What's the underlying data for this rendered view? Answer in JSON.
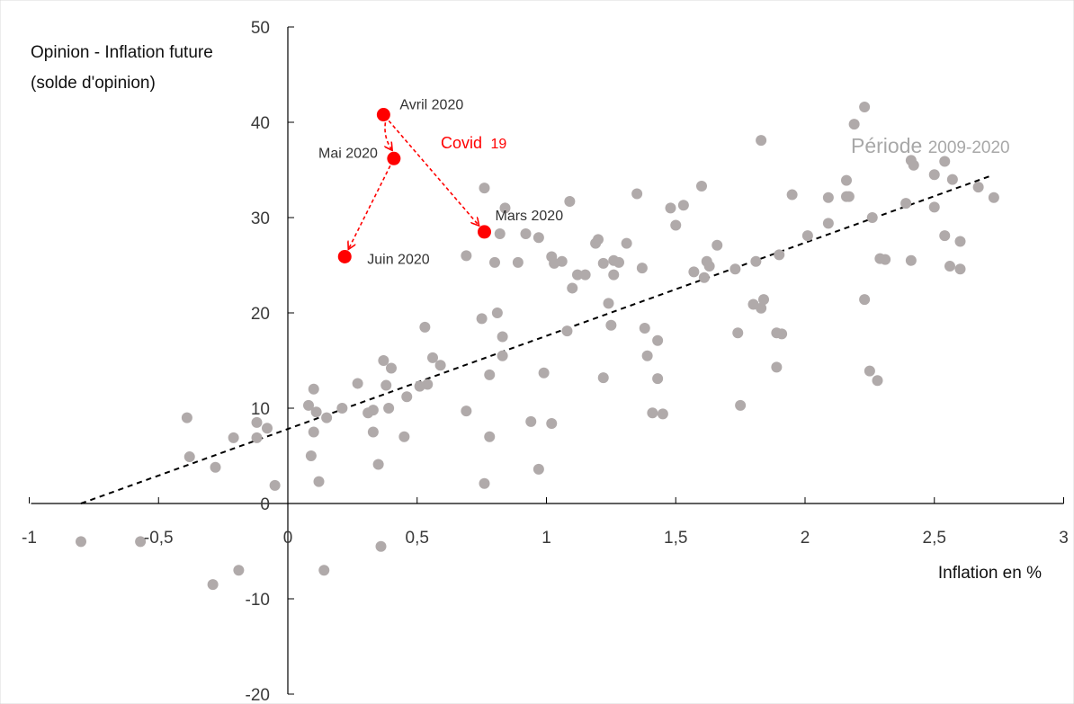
{
  "chart_data": {
    "type": "scatter",
    "title": "",
    "xlabel": "Inflation en %",
    "ylabel_lines": [
      "Opinion - Inflation future",
      "(solde d'opinion)"
    ],
    "xlim": [
      -1,
      3
    ],
    "ylim": [
      -20,
      50
    ],
    "x_ticks": [
      -1,
      -0.5,
      0,
      0.5,
      1,
      1.5,
      2,
      2.5,
      3
    ],
    "x_tick_labels": [
      "-1",
      "-0,5",
      "0",
      "0,5",
      "1",
      "1,5",
      "2",
      "2,5",
      "3"
    ],
    "y_ticks": [
      -20,
      -10,
      0,
      10,
      20,
      30,
      40,
      50
    ],
    "y_tick_labels": [
      "-20",
      "-10",
      "0",
      "10",
      "20",
      "30",
      "40",
      "50"
    ],
    "grid": false,
    "colors": {
      "history": "#b0aaaa",
      "covid": "#ff0000",
      "trend": "#000000"
    },
    "series": [
      {
        "role": "history",
        "points": [
          [
            -0.8,
            -4
          ],
          [
            -0.57,
            -4
          ],
          [
            -0.39,
            9
          ],
          [
            -0.38,
            4.9
          ],
          [
            -0.28,
            3.8
          ],
          [
            -0.29,
            -8.5
          ],
          [
            -0.21,
            6.9
          ],
          [
            -0.19,
            -7
          ],
          [
            -0.12,
            8.5
          ],
          [
            -0.12,
            6.9
          ],
          [
            -0.08,
            7.9
          ],
          [
            -0.05,
            1.9
          ],
          [
            0.08,
            10.3
          ],
          [
            0.09,
            5
          ],
          [
            0.1,
            7.5
          ],
          [
            0.1,
            12
          ],
          [
            0.11,
            9.6
          ],
          [
            0.12,
            2.3
          ],
          [
            0.14,
            -7
          ],
          [
            0.15,
            9
          ],
          [
            0.21,
            10
          ],
          [
            0.27,
            12.6
          ],
          [
            0.31,
            9.5
          ],
          [
            0.33,
            9.8
          ],
          [
            0.33,
            7.5
          ],
          [
            0.35,
            4.1
          ],
          [
            0.36,
            -4.5
          ],
          [
            0.37,
            15
          ],
          [
            0.38,
            12.4
          ],
          [
            0.39,
            10
          ],
          [
            0.4,
            14.2
          ],
          [
            0.45,
            7
          ],
          [
            0.46,
            11.2
          ],
          [
            0.51,
            12.3
          ],
          [
            0.53,
            18.5
          ],
          [
            0.54,
            12.5
          ],
          [
            0.56,
            15.3
          ],
          [
            0.59,
            14.5
          ],
          [
            0.69,
            26
          ],
          [
            0.69,
            9.7
          ],
          [
            0.75,
            19.4
          ],
          [
            0.76,
            33.1
          ],
          [
            0.76,
            2.1
          ],
          [
            0.78,
            7
          ],
          [
            0.78,
            13.5
          ],
          [
            0.8,
            25.3
          ],
          [
            0.81,
            20
          ],
          [
            0.82,
            28.3
          ],
          [
            0.83,
            17.5
          ],
          [
            0.83,
            15.5
          ],
          [
            0.84,
            31
          ],
          [
            0.89,
            25.3
          ],
          [
            0.92,
            28.3
          ],
          [
            0.94,
            8.6
          ],
          [
            0.97,
            3.6
          ],
          [
            0.97,
            27.9
          ],
          [
            0.99,
            13.7
          ],
          [
            1.02,
            8.4
          ],
          [
            1.02,
            25.9
          ],
          [
            1.03,
            25.2
          ],
          [
            1.06,
            25.4
          ],
          [
            1.08,
            18.1
          ],
          [
            1.09,
            31.7
          ],
          [
            1.1,
            22.6
          ],
          [
            1.12,
            24
          ],
          [
            1.15,
            24
          ],
          [
            1.19,
            27.3
          ],
          [
            1.2,
            27.7
          ],
          [
            1.22,
            13.2
          ],
          [
            1.22,
            25.2
          ],
          [
            1.24,
            21
          ],
          [
            1.25,
            18.7
          ],
          [
            1.26,
            25.5
          ],
          [
            1.26,
            24
          ],
          [
            1.28,
            25.3
          ],
          [
            1.31,
            27.3
          ],
          [
            1.35,
            32.5
          ],
          [
            1.37,
            24.7
          ],
          [
            1.38,
            18.4
          ],
          [
            1.39,
            15.5
          ],
          [
            1.41,
            9.5
          ],
          [
            1.43,
            17.1
          ],
          [
            1.43,
            13.1
          ],
          [
            1.45,
            9.4
          ],
          [
            1.48,
            31
          ],
          [
            1.5,
            29.2
          ],
          [
            1.53,
            31.3
          ],
          [
            1.57,
            24.3
          ],
          [
            1.6,
            33.3
          ],
          [
            1.61,
            23.7
          ],
          [
            1.62,
            25.4
          ],
          [
            1.63,
            24.9
          ],
          [
            1.66,
            27.1
          ],
          [
            1.73,
            24.6
          ],
          [
            1.74,
            17.9
          ],
          [
            1.75,
            10.3
          ],
          [
            1.8,
            20.9
          ],
          [
            1.81,
            25.4
          ],
          [
            1.83,
            38.1
          ],
          [
            1.83,
            20.5
          ],
          [
            1.84,
            21.4
          ],
          [
            1.89,
            14.3
          ],
          [
            1.89,
            17.9
          ],
          [
            1.9,
            26.1
          ],
          [
            1.91,
            17.8
          ],
          [
            1.95,
            32.4
          ],
          [
            2.01,
            28.1
          ],
          [
            2.09,
            29.4
          ],
          [
            2.09,
            32.1
          ],
          [
            2.16,
            32.2
          ],
          [
            2.16,
            33.9
          ],
          [
            2.17,
            32.2
          ],
          [
            2.19,
            39.8
          ],
          [
            2.23,
            41.6
          ],
          [
            2.23,
            21.4
          ],
          [
            2.25,
            13.9
          ],
          [
            2.26,
            30
          ],
          [
            2.28,
            12.9
          ],
          [
            2.29,
            25.7
          ],
          [
            2.31,
            25.6
          ],
          [
            2.39,
            31.5
          ],
          [
            2.41,
            25.5
          ],
          [
            2.41,
            36
          ],
          [
            2.42,
            35.5
          ],
          [
            2.5,
            34.5
          ],
          [
            2.5,
            31.1
          ],
          [
            2.54,
            28.1
          ],
          [
            2.54,
            35.9
          ],
          [
            2.56,
            24.9
          ],
          [
            2.57,
            34
          ],
          [
            2.6,
            27.5
          ],
          [
            2.6,
            24.6
          ],
          [
            2.67,
            33.2
          ],
          [
            2.73,
            32.1
          ]
        ]
      },
      {
        "role": "covid",
        "points": [
          [
            0.37,
            40.8
          ],
          [
            0.41,
            36.2
          ],
          [
            0.76,
            28.5
          ],
          [
            0.22,
            25.9
          ]
        ]
      }
    ],
    "trendline": {
      "x": [
        -0.8,
        2.72
      ],
      "y": [
        0,
        34.4
      ]
    },
    "covid_labels": [
      "Avril 2020",
      "Mai 2020",
      "Mars 2020",
      "Juin 2020"
    ],
    "annotations": {
      "covid": {
        "a": "Covid",
        "b": "19"
      },
      "period": {
        "a": "Période",
        "b": "2009-2020"
      }
    }
  }
}
